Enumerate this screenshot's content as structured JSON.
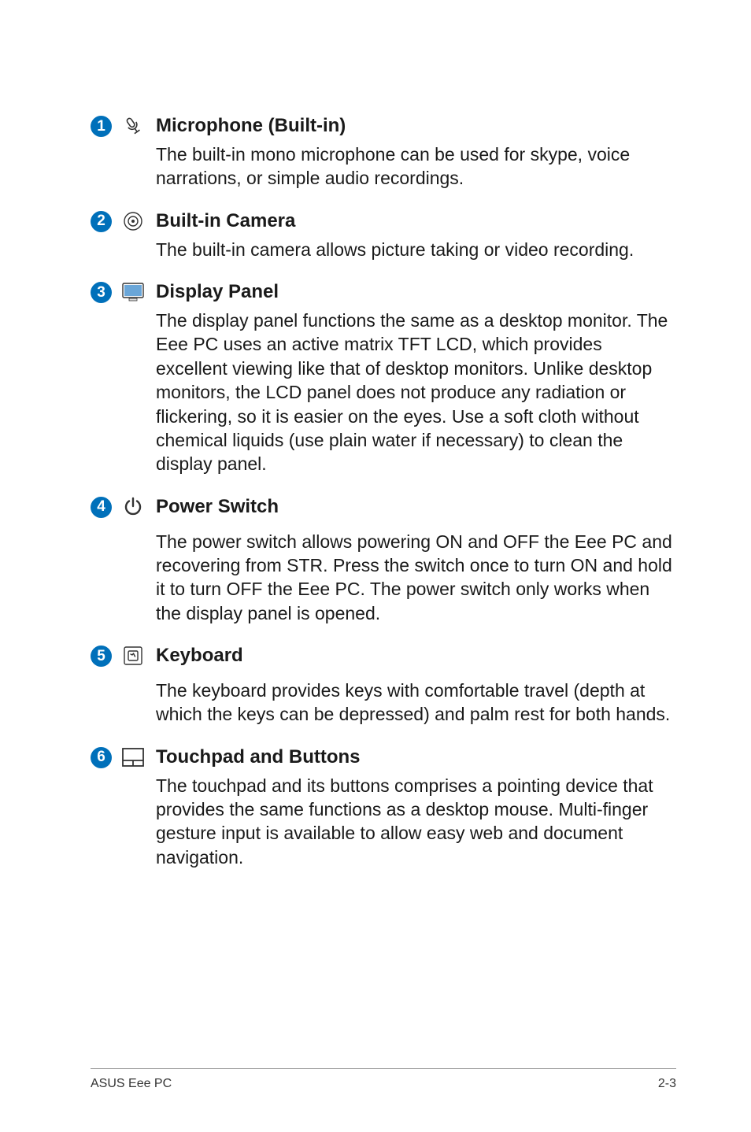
{
  "colors": {
    "badge_bg": "#0070ba",
    "badge_fg": "#ffffff",
    "icon_stroke": "#333333",
    "display_fill": "#6aa6d8",
    "text": "#1a1a1a",
    "divider": "#9a9a9a"
  },
  "typography": {
    "title_fontsize": 24,
    "title_weight": 700,
    "desc_fontsize": 23,
    "desc_weight": 400,
    "footer_fontsize": 16
  },
  "items": [
    {
      "num": "1",
      "icon": "microphone-icon",
      "title": "Microphone (Built-in)",
      "desc": "The built-in mono microphone can be used for skype, voice narrations, or simple audio recordings."
    },
    {
      "num": "2",
      "icon": "camera-icon",
      "title": "Built-in Camera",
      "desc": "The built-in camera allows picture taking or video recording."
    },
    {
      "num": "3",
      "icon": "display-icon",
      "title": "Display Panel",
      "desc": "The display panel functions the same as a desktop monitor. The Eee PC uses an active matrix TFT LCD, which provides excellent viewing like that of desktop monitors. Unlike desktop monitors, the LCD panel does not produce any radiation or flickering, so it is easier on the eyes. Use a soft cloth without chemical liquids (use plain water if necessary) to clean the display panel."
    },
    {
      "num": "4",
      "icon": "power-icon",
      "title": "Power Switch",
      "desc": "The power switch allows powering ON and OFF the Eee PC and recovering from STR. Press the switch once to turn ON and hold it to turn OFF the Eee PC. The power switch only works when the display panel is opened.",
      "title_gap": 14
    },
    {
      "num": "5",
      "icon": "keyboard-icon",
      "title": "Keyboard",
      "desc": "The keyboard provides keys with comfortable travel (depth at which the keys can be depressed) and palm rest for both hands.",
      "title_gap": 14
    },
    {
      "num": "6",
      "icon": "touchpad-icon",
      "title": "Touchpad and Buttons",
      "desc": "The touchpad and its buttons comprises a pointing device that provides the same functions as a desktop mouse. Multi-finger gesture input is available to allow easy web and document navigation."
    }
  ],
  "footer": {
    "left": "ASUS Eee PC",
    "right": "2-3"
  }
}
